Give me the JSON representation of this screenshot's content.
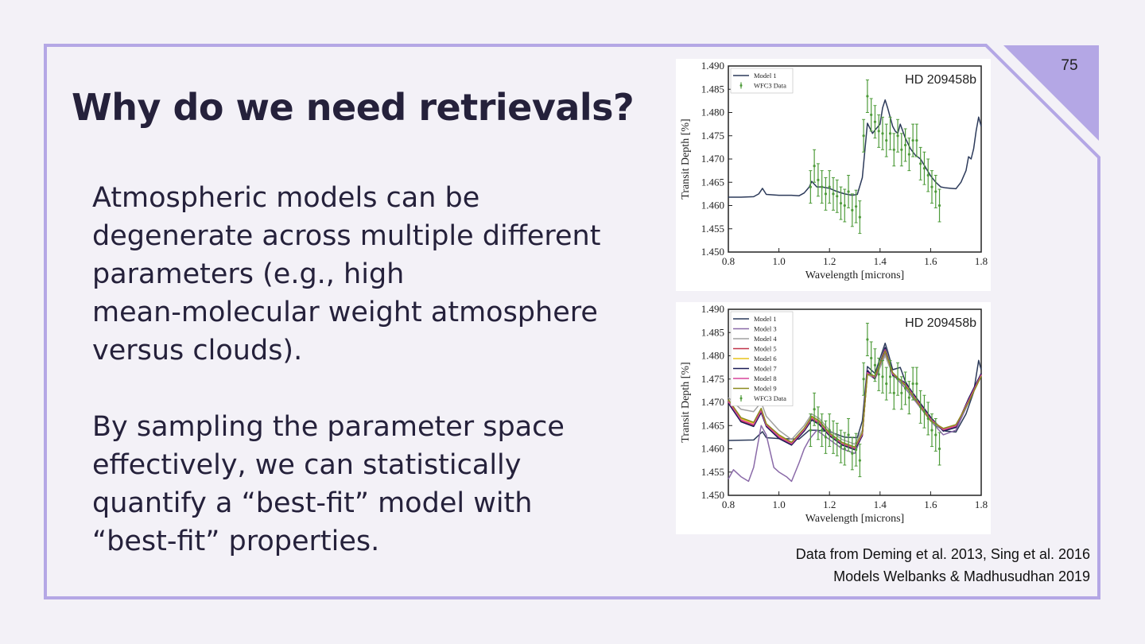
{
  "slide": {
    "number": "75",
    "title": "Why do we need retrievals?",
    "paragraphs": [
      "Atmospheric models can be\ndegenerate across multiple different\nparameters (e.g., high\nmean-molecular weight atmosphere\nversus clouds).",
      "By sampling the parameter space\neffectively, we can statistically\nquantify a “best-fit” model with\n“best-fit” properties."
    ],
    "credits": [
      "Data from Deming et al. 2013, Sing et al. 2016",
      "Models Welbanks & Madhusudhan 2019"
    ]
  },
  "colors": {
    "accent": "#b4a7e5",
    "title_text": "#25213b",
    "data_green": "#4e9b3a",
    "model1_navy": "#2c3a5a"
  },
  "chart_data": [
    {
      "type": "line",
      "planet": "HD 209458b",
      "xlabel": "Wavelength [microns]",
      "ylabel": "Transit Depth [%]",
      "xlim": [
        0.8,
        1.8
      ],
      "ylim": [
        1.45,
        1.49
      ],
      "xticks": [
        "0.8",
        "1.0",
        "1.2",
        "1.4",
        "1.6",
        "1.8"
      ],
      "yticks": [
        "1.450",
        "1.455",
        "1.460",
        "1.465",
        "1.470",
        "1.475",
        "1.480",
        "1.485",
        "1.490"
      ],
      "legend": [
        "Model 1",
        "WFC3 Data"
      ],
      "series": [
        {
          "name": "Model 1",
          "color": "#2c3a5a",
          "x": [
            0.8,
            0.85,
            0.9,
            0.92,
            0.935,
            0.95,
            1.0,
            1.05,
            1.08,
            1.1,
            1.12,
            1.13,
            1.15,
            1.17,
            1.2,
            1.23,
            1.26,
            1.29,
            1.31,
            1.33,
            1.35,
            1.37,
            1.38,
            1.4,
            1.41,
            1.42,
            1.43,
            1.45,
            1.46,
            1.47,
            1.48,
            1.5,
            1.52,
            1.54,
            1.56,
            1.58,
            1.6,
            1.62,
            1.64,
            1.66,
            1.68,
            1.7,
            1.72,
            1.74,
            1.75,
            1.76,
            1.77,
            1.78,
            1.79,
            1.8
          ],
          "y": [
            1.4618,
            1.4618,
            1.4619,
            1.4625,
            1.4637,
            1.4624,
            1.4622,
            1.4622,
            1.4621,
            1.4627,
            1.464,
            1.4652,
            1.464,
            1.464,
            1.4637,
            1.463,
            1.4625,
            1.4622,
            1.4624,
            1.466,
            1.4777,
            1.4755,
            1.4762,
            1.4775,
            1.481,
            1.4827,
            1.481,
            1.477,
            1.476,
            1.4755,
            1.4775,
            1.4745,
            1.4722,
            1.4708,
            1.47,
            1.4682,
            1.4664,
            1.465,
            1.464,
            1.4638,
            1.4637,
            1.4636,
            1.465,
            1.4675,
            1.4705,
            1.47,
            1.4722,
            1.476,
            1.479,
            1.477
          ]
        },
        {
          "name": "WFC3 Data",
          "color": "#4e9b3a",
          "kind": "errorbar",
          "x": [
            1.125,
            1.14,
            1.155,
            1.17,
            1.185,
            1.2,
            1.215,
            1.23,
            1.245,
            1.26,
            1.275,
            1.29,
            1.305,
            1.32,
            1.335,
            1.35,
            1.365,
            1.38,
            1.395,
            1.41,
            1.425,
            1.44,
            1.455,
            1.47,
            1.485,
            1.5,
            1.515,
            1.53,
            1.545,
            1.56,
            1.575,
            1.59,
            1.605,
            1.62,
            1.635
          ],
          "y": [
            1.464,
            1.4685,
            1.4655,
            1.464,
            1.4625,
            1.464,
            1.4625,
            1.462,
            1.4605,
            1.46,
            1.463,
            1.459,
            1.4598,
            1.4575,
            1.475,
            1.4835,
            1.4795,
            1.478,
            1.476,
            1.4755,
            1.474,
            1.4755,
            1.472,
            1.475,
            1.472,
            1.473,
            1.471,
            1.474,
            1.474,
            1.469,
            1.468,
            1.4665,
            1.464,
            1.463,
            1.46
          ],
          "err": 0.0035
        }
      ]
    },
    {
      "type": "line",
      "planet": "HD 209458b",
      "xlabel": "Wavelength [microns]",
      "ylabel": "Transit Depth [%]",
      "xlim": [
        0.8,
        1.8
      ],
      "ylim": [
        1.45,
        1.49
      ],
      "xticks": [
        "0.8",
        "1.0",
        "1.2",
        "1.4",
        "1.6",
        "1.8"
      ],
      "yticks": [
        "1.450",
        "1.455",
        "1.460",
        "1.465",
        "1.470",
        "1.475",
        "1.480",
        "1.485",
        "1.490"
      ],
      "legend": [
        "Model 1",
        "Model 3",
        "Model 4",
        "Model 5",
        "Model 6",
        "Model 7",
        "Model 8",
        "Model 9",
        "WFC3 Data"
      ],
      "series": [
        {
          "name": "Model 1",
          "color": "#2c3a5a",
          "x": [
            0.8,
            0.9,
            0.935,
            0.95,
            1.0,
            1.08,
            1.12,
            1.15,
            1.2,
            1.26,
            1.31,
            1.33,
            1.35,
            1.38,
            1.42,
            1.43,
            1.45,
            1.48,
            1.5,
            1.54,
            1.58,
            1.62,
            1.66,
            1.7,
            1.74,
            1.77,
            1.79,
            1.8
          ],
          "y": [
            1.4618,
            1.4619,
            1.4637,
            1.4624,
            1.4622,
            1.4621,
            1.464,
            1.464,
            1.4637,
            1.4625,
            1.4624,
            1.466,
            1.4777,
            1.4762,
            1.4827,
            1.481,
            1.477,
            1.4775,
            1.4745,
            1.4708,
            1.4682,
            1.465,
            1.4638,
            1.4636,
            1.4675,
            1.4722,
            1.479,
            1.477
          ]
        },
        {
          "name": "Model 3",
          "color": "#8a6aa8",
          "x": [
            0.8,
            0.82,
            0.85,
            0.88,
            0.9,
            0.93,
            0.95,
            0.98,
            1.0,
            1.03,
            1.05,
            1.08,
            1.1,
            1.12,
            1.15,
            1.2,
            1.25,
            1.3,
            1.33,
            1.35,
            1.38,
            1.42,
            1.45,
            1.5,
            1.55,
            1.6,
            1.65,
            1.7,
            1.75,
            1.8
          ],
          "y": [
            1.4535,
            1.4555,
            1.454,
            1.453,
            1.456,
            1.465,
            1.463,
            1.456,
            1.455,
            1.454,
            1.453,
            1.457,
            1.46,
            1.462,
            1.464,
            1.462,
            1.46,
            1.459,
            1.463,
            1.477,
            1.475,
            1.4805,
            1.476,
            1.473,
            1.4695,
            1.466,
            1.463,
            1.464,
            1.47,
            1.476
          ]
        },
        {
          "name": "Model 4",
          "color": "#a0a0a0",
          "x": [
            0.8,
            0.85,
            0.9,
            0.93,
            0.95,
            1.0,
            1.05,
            1.1,
            1.13,
            1.16,
            1.2,
            1.25,
            1.3,
            1.33,
            1.35,
            1.38,
            1.42,
            1.45,
            1.5,
            1.55,
            1.6,
            1.65,
            1.7,
            1.75,
            1.8
          ],
          "y": [
            1.471,
            1.4685,
            1.468,
            1.47,
            1.467,
            1.464,
            1.462,
            1.465,
            1.4675,
            1.4665,
            1.464,
            1.462,
            1.461,
            1.464,
            1.476,
            1.475,
            1.48,
            1.476,
            1.4735,
            1.47,
            1.466,
            1.464,
            1.465,
            1.47,
            1.476
          ]
        },
        {
          "name": "Model 5",
          "color": "#c0334a",
          "x": [
            0.8,
            0.85,
            0.9,
            0.93,
            0.95,
            1.0,
            1.05,
            1.1,
            1.13,
            1.16,
            1.2,
            1.25,
            1.3,
            1.33,
            1.35,
            1.38,
            1.42,
            1.45,
            1.5,
            1.55,
            1.6,
            1.65,
            1.7,
            1.75,
            1.8
          ],
          "y": [
            1.47,
            1.466,
            1.465,
            1.468,
            1.465,
            1.4625,
            1.461,
            1.464,
            1.4665,
            1.4655,
            1.463,
            1.461,
            1.46,
            1.463,
            1.4765,
            1.4752,
            1.4815,
            1.476,
            1.474,
            1.4702,
            1.4665,
            1.464,
            1.4648,
            1.4705,
            1.476
          ]
        },
        {
          "name": "Model 6",
          "color": "#e8c21a",
          "x": [
            0.8,
            0.85,
            0.9,
            0.93,
            0.95,
            1.0,
            1.05,
            1.1,
            1.13,
            1.16,
            1.2,
            1.25,
            1.3,
            1.33,
            1.35,
            1.38,
            1.42,
            1.45,
            1.5,
            1.55,
            1.6,
            1.65,
            1.7,
            1.75,
            1.8
          ],
          "y": [
            1.4705,
            1.4665,
            1.4655,
            1.4685,
            1.4652,
            1.4628,
            1.4612,
            1.4642,
            1.4668,
            1.4658,
            1.4632,
            1.4612,
            1.4602,
            1.4632,
            1.4762,
            1.4755,
            1.4812,
            1.4762,
            1.4738,
            1.47,
            1.4662,
            1.4642,
            1.465,
            1.4702,
            1.4758
          ]
        },
        {
          "name": "Model 7",
          "color": "#1a1a55",
          "x": [
            0.8,
            0.85,
            0.9,
            0.93,
            0.95,
            1.0,
            1.05,
            1.1,
            1.13,
            1.16,
            1.2,
            1.25,
            1.3,
            1.33,
            1.35,
            1.38,
            1.42,
            1.45,
            1.5,
            1.55,
            1.6,
            1.65,
            1.7,
            1.75,
            1.8
          ],
          "y": [
            1.4698,
            1.4658,
            1.4648,
            1.4678,
            1.4648,
            1.4622,
            1.4608,
            1.4638,
            1.4662,
            1.4652,
            1.4628,
            1.4608,
            1.4598,
            1.4628,
            1.4768,
            1.475,
            1.4818,
            1.4758,
            1.4742,
            1.4705,
            1.4668,
            1.4638,
            1.4646,
            1.4708,
            1.4762
          ]
        },
        {
          "name": "Model 8",
          "color": "#d8459a",
          "x": [
            0.8,
            0.85,
            0.9,
            0.93,
            0.95,
            1.0,
            1.05,
            1.1,
            1.13,
            1.16,
            1.2,
            1.25,
            1.3,
            1.33,
            1.35,
            1.38,
            1.42,
            1.45,
            1.5,
            1.55,
            1.6,
            1.65,
            1.7,
            1.75,
            1.8
          ],
          "y": [
            1.4702,
            1.4662,
            1.4652,
            1.4682,
            1.4651,
            1.4626,
            1.4611,
            1.4641,
            1.4666,
            1.4656,
            1.4631,
            1.4611,
            1.4601,
            1.4631,
            1.4764,
            1.4753,
            1.4813,
            1.4761,
            1.4739,
            1.4701,
            1.4664,
            1.4641,
            1.4649,
            1.4704,
            1.4759
          ]
        },
        {
          "name": "Model 9",
          "color": "#8c8a1e",
          "x": [
            0.8,
            0.85,
            0.9,
            0.93,
            0.95,
            1.0,
            1.05,
            1.1,
            1.13,
            1.16,
            1.2,
            1.25,
            1.3,
            1.33,
            1.35,
            1.38,
            1.42,
            1.45,
            1.5,
            1.55,
            1.6,
            1.65,
            1.7,
            1.75,
            1.8
          ],
          "y": [
            1.4706,
            1.4667,
            1.4657,
            1.4687,
            1.4654,
            1.463,
            1.4614,
            1.4644,
            1.467,
            1.466,
            1.4634,
            1.4614,
            1.4604,
            1.4634,
            1.476,
            1.4757,
            1.481,
            1.4764,
            1.4736,
            1.4698,
            1.466,
            1.4644,
            1.4652,
            1.47,
            1.4756
          ]
        },
        {
          "name": "WFC3 Data",
          "color": "#4e9b3a",
          "kind": "errorbar",
          "x": [
            1.125,
            1.14,
            1.155,
            1.17,
            1.185,
            1.2,
            1.215,
            1.23,
            1.245,
            1.26,
            1.275,
            1.29,
            1.305,
            1.32,
            1.335,
            1.35,
            1.365,
            1.38,
            1.395,
            1.41,
            1.425,
            1.44,
            1.455,
            1.47,
            1.485,
            1.5,
            1.515,
            1.53,
            1.545,
            1.56,
            1.575,
            1.59,
            1.605,
            1.62,
            1.635
          ],
          "y": [
            1.464,
            1.4685,
            1.4655,
            1.464,
            1.4625,
            1.464,
            1.4625,
            1.462,
            1.4605,
            1.46,
            1.463,
            1.459,
            1.4598,
            1.4575,
            1.475,
            1.4835,
            1.4795,
            1.478,
            1.476,
            1.4755,
            1.474,
            1.4755,
            1.472,
            1.475,
            1.472,
            1.473,
            1.471,
            1.474,
            1.474,
            1.469,
            1.468,
            1.4665,
            1.464,
            1.463,
            1.46
          ],
          "err": 0.0035
        }
      ]
    }
  ]
}
